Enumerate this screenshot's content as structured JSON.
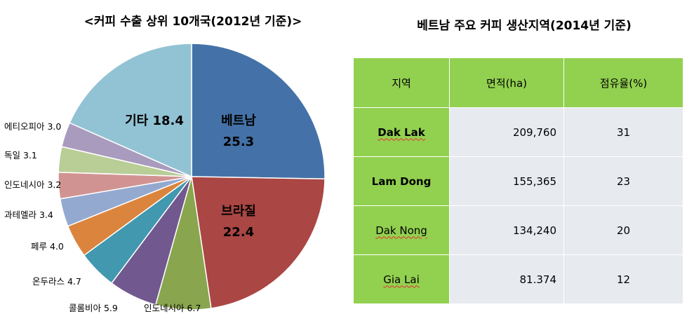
{
  "chart_data": [
    {
      "type": "pie",
      "title": "<커피 수출 상위 10개국(2012년 기준)>",
      "slices": [
        {
          "label": "베트남",
          "value": 25.3,
          "color": "#4472a8",
          "label_inside": true
        },
        {
          "label": "브라질",
          "value": 22.4,
          "color": "#aa4644",
          "label_inside": true
        },
        {
          "label": "인도네시아",
          "value": 6.7,
          "color": "#89a54e",
          "label_inside": false
        },
        {
          "label": "콜롬비아",
          "value": 5.9,
          "color": "#71588f",
          "label_inside": false
        },
        {
          "label": "온두라스",
          "value": 4.7,
          "color": "#4198af",
          "label_inside": false
        },
        {
          "label": "페루",
          "value": 4.0,
          "color": "#db843d",
          "label_inside": false
        },
        {
          "label": "과테멜라",
          "value": 3.4,
          "color": "#93a9cf",
          "label_inside": false
        },
        {
          "label": "인도네시아",
          "value": 3.2,
          "color": "#d19392",
          "label_inside": false
        },
        {
          "label": "독일",
          "value": 3.1,
          "color": "#b9cd96",
          "label_inside": false
        },
        {
          "label": "에티오피아",
          "value": 3.0,
          "color": "#a99bbd",
          "label_inside": false
        },
        {
          "label": "기타",
          "value": 18.4,
          "color": "#92c3d4",
          "label_inside": true
        }
      ]
    },
    {
      "type": "table",
      "title": "베트남 주요 커피 생산지역(2014년 기준)",
      "columns": [
        "지역",
        "면적(ha)",
        "점유율(%)"
      ],
      "rows": [
        {
          "region": "Dak Lak",
          "area": "209,760",
          "share": "31"
        },
        {
          "region": "Lam Dong",
          "area": "155,365",
          "share": "23"
        },
        {
          "region": "Dak Nong",
          "area": "134,240",
          "share": "20"
        },
        {
          "region": "Gia Lai",
          "area": "81.374",
          "share": "12"
        }
      ]
    }
  ]
}
